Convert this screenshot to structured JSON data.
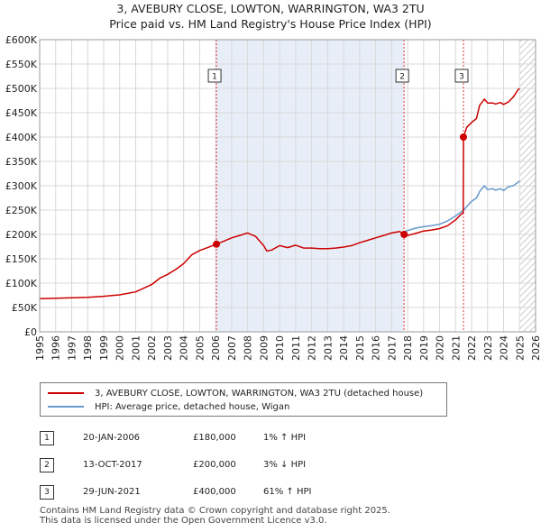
{
  "title_line1": "3, AVEBURY CLOSE, LOWTON, WARRINGTON, WA3 2TU",
  "title_line2": "Price paid vs. HM Land Registry's House Price Index (HPI)",
  "colors": {
    "property": "#cc0000",
    "hpi": "#6699cc",
    "shade": "#e8eef8",
    "vline": "#dd3333"
  },
  "legend": {
    "property_label": "3, AVEBURY CLOSE, LOWTON, WARRINGTON, WA3 2TU (detached house)",
    "hpi_label": "HPI: Average price, detached house, Wigan"
  },
  "sales": [
    {
      "num": "1",
      "date": "20-JAN-2006",
      "price": "£180,000",
      "hpi": "1% ↑ HPI"
    },
    {
      "num": "2",
      "date": "13-OCT-2017",
      "price": "£200,000",
      "hpi": "3% ↓ HPI"
    },
    {
      "num": "3",
      "date": "29-JUN-2021",
      "price": "£400,000",
      "hpi": "61% ↑ HPI"
    }
  ],
  "footer_line1": "Contains HM Land Registry data © Crown copyright and database right 2025.",
  "footer_line2": "This data is licensed under the Open Government Licence v3.0.",
  "chart_data": {
    "type": "line",
    "xlim": [
      1995,
      2026
    ],
    "ylim": [
      0,
      600000
    ],
    "x_ticks": [
      1995,
      1996,
      1997,
      1998,
      1999,
      2000,
      2001,
      2002,
      2003,
      2004,
      2005,
      2006,
      2007,
      2008,
      2009,
      2010,
      2011,
      2012,
      2013,
      2014,
      2015,
      2016,
      2017,
      2018,
      2019,
      2020,
      2021,
      2022,
      2023,
      2024,
      2025,
      2026
    ],
    "y_ticks": [
      0,
      50000,
      100000,
      150000,
      200000,
      250000,
      300000,
      350000,
      400000,
      450000,
      500000,
      550000,
      600000
    ],
    "y_tick_labels": [
      "£0",
      "£50K",
      "£100K",
      "£150K",
      "£200K",
      "£250K",
      "£300K",
      "£350K",
      "£400K",
      "£450K",
      "£500K",
      "£550K",
      "£600K"
    ],
    "sale_markers": [
      {
        "label": "1",
        "x": 2006.05,
        "y": 180000
      },
      {
        "label": "2",
        "x": 2017.78,
        "y": 200000
      },
      {
        "label": "3",
        "x": 2021.49,
        "y": 400000
      }
    ],
    "shaded_range": [
      2006.05,
      2017.78
    ],
    "hatched_from": 2025.0,
    "series": [
      {
        "name": "3, AVEBURY CLOSE, LOWTON, WARRINGTON, WA3 2TU (detached house)",
        "x": [
          1995.0,
          1996.0,
          1997.0,
          1998.0,
          1999.0,
          2000.0,
          2001.0,
          2002.0,
          2002.5,
          2003.0,
          2003.5,
          2004.0,
          2004.5,
          2005.0,
          2005.5,
          2006.05,
          2006.5,
          2007.0,
          2007.5,
          2008.0,
          2008.5,
          2009.0,
          2009.2,
          2009.5,
          2010.0,
          2010.5,
          2011.0,
          2011.5,
          2012.0,
          2012.5,
          2013.0,
          2013.5,
          2014.0,
          2014.5,
          2015.0,
          2015.5,
          2016.0,
          2016.5,
          2017.0,
          2017.5,
          2017.78,
          2018.0,
          2018.5,
          2019.0,
          2019.5,
          2020.0,
          2020.5,
          2021.0,
          2021.3,
          2021.48,
          2021.49,
          2021.7,
          2022.0,
          2022.3,
          2022.5,
          2022.8,
          2023.0,
          2023.3,
          2023.5,
          2023.8,
          2024.0,
          2024.3,
          2024.6,
          2024.9,
          2025.0
        ],
        "values": [
          68000,
          69000,
          70000,
          71000,
          73000,
          76000,
          82000,
          97000,
          110000,
          118000,
          128000,
          140000,
          158000,
          167000,
          173000,
          180000,
          186000,
          193000,
          198000,
          203000,
          196000,
          177000,
          166000,
          168000,
          177000,
          173000,
          178000,
          172000,
          172000,
          171000,
          171000,
          172000,
          174000,
          177000,
          183000,
          188000,
          193000,
          198000,
          203000,
          206000,
          200000,
          198000,
          202000,
          207000,
          209000,
          212000,
          218000,
          230000,
          240000,
          245000,
          400000,
          420000,
          430000,
          438000,
          465000,
          478000,
          470000,
          470000,
          468000,
          471000,
          467000,
          472000,
          482000,
          497000,
          500000
        ]
      },
      {
        "name": "HPI: Average price, detached house, Wigan",
        "x": [
          2017.78,
          2018.0,
          2018.5,
          2019.0,
          2019.5,
          2020.0,
          2020.5,
          2021.0,
          2021.5,
          2022.0,
          2022.3,
          2022.5,
          2022.8,
          2023.0,
          2023.3,
          2023.5,
          2023.8,
          2024.0,
          2024.3,
          2024.6,
          2024.9,
          2025.0
        ],
        "values": [
          206000,
          208000,
          213000,
          216000,
          218000,
          221000,
          228000,
          238000,
          250000,
          268000,
          275000,
          288000,
          300000,
          292000,
          294000,
          291000,
          294000,
          290000,
          298000,
          300000,
          307000,
          310000
        ]
      }
    ]
  }
}
